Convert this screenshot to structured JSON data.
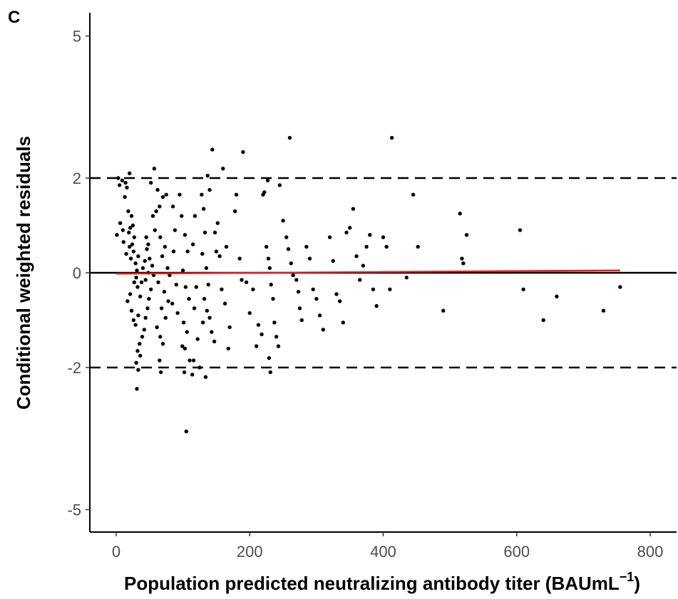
{
  "panel_label": "C",
  "chart_data": {
    "type": "scatter",
    "xlabel": "Population predicted neutralizing antibody titer (BAUmL",
    "xlabel_superscript": "−1",
    "xlabel_suffix": ")",
    "ylabel": "Conditional weighted residuals",
    "xlim": [
      -50,
      840
    ],
    "ylim": [
      -5.5,
      5.5
    ],
    "x_ticks": [
      0,
      200,
      400,
      600,
      800
    ],
    "x_tick_labels": [
      "0",
      "200",
      "400",
      "600",
      "800"
    ],
    "y_ticks": [
      -5,
      -2,
      0,
      2,
      5
    ],
    "y_tick_labels": [
      "-5",
      "-2",
      "0",
      "2",
      "5"
    ],
    "grid": false,
    "reference_lines": [
      {
        "y": 0,
        "style": "solid",
        "color": "#000000"
      },
      {
        "y": 2,
        "style": "dashed",
        "color": "#000000"
      },
      {
        "y": -2,
        "style": "dashed",
        "color": "#000000"
      }
    ],
    "trend_line": {
      "color": "#e41a1c",
      "x": [
        0,
        755
      ],
      "y": [
        -0.02,
        0.05
      ]
    },
    "point_color": "#000000",
    "points": [
      [
        3,
        2.0
      ],
      [
        5,
        1.85
      ],
      [
        9,
        1.95
      ],
      [
        14,
        1.9
      ],
      [
        16,
        1.8
      ],
      [
        13,
        1.6
      ],
      [
        1,
        0.8
      ],
      [
        6,
        1.05
      ],
      [
        10,
        0.9
      ],
      [
        11,
        0.65
      ],
      [
        19,
        0.85
      ],
      [
        21,
        0.95
      ],
      [
        25,
        1.0
      ],
      [
        23,
        1.2
      ],
      [
        18,
        1.3
      ],
      [
        27,
        0.75
      ],
      [
        15,
        0.4
      ],
      [
        20,
        0.55
      ],
      [
        22,
        0.3
      ],
      [
        24,
        0.6
      ],
      [
        26,
        0.45
      ],
      [
        29,
        0.2
      ],
      [
        31,
        0.05
      ],
      [
        33,
        0.35
      ],
      [
        30,
        -0.1
      ],
      [
        32,
        -0.3
      ],
      [
        27,
        -0.2
      ],
      [
        21,
        -0.45
      ],
      [
        17,
        -0.6
      ],
      [
        23,
        -0.8
      ],
      [
        26,
        -1.0
      ],
      [
        29,
        -1.1
      ],
      [
        33,
        -0.9
      ],
      [
        36,
        -0.5
      ],
      [
        38,
        -0.2
      ],
      [
        40,
        0.1
      ],
      [
        43,
        0.25
      ],
      [
        46,
        0.5
      ],
      [
        45,
        0.75
      ],
      [
        48,
        0.6
      ],
      [
        50,
        0.3
      ],
      [
        54,
        0.15
      ],
      [
        56,
        -0.05
      ],
      [
        52,
        -0.35
      ],
      [
        49,
        -0.55
      ],
      [
        47,
        -0.75
      ],
      [
        44,
        -0.95
      ],
      [
        42,
        -1.2
      ],
      [
        39,
        -1.35
      ],
      [
        35,
        -1.5
      ],
      [
        32,
        -1.65
      ],
      [
        36,
        -1.75
      ],
      [
        30,
        -1.9
      ],
      [
        33,
        -2.05
      ],
      [
        31,
        -2.45
      ],
      [
        20,
        2.1
      ],
      [
        60,
        1.3
      ],
      [
        55,
        1.2
      ],
      [
        65,
        1.4
      ],
      [
        75,
        1.65
      ],
      [
        62,
        1.75
      ],
      [
        70,
        1.6
      ],
      [
        58,
        0.9
      ],
      [
        66,
        0.75
      ],
      [
        73,
        0.55
      ],
      [
        69,
        0.35
      ],
      [
        77,
        0.1
      ],
      [
        80,
        -0.05
      ],
      [
        63,
        -0.2
      ],
      [
        72,
        -0.4
      ],
      [
        78,
        -0.6
      ],
      [
        68,
        -0.75
      ],
      [
        74,
        -0.95
      ],
      [
        61,
        -1.15
      ],
      [
        66,
        -1.35
      ],
      [
        70,
        -1.5
      ],
      [
        65,
        -1.85
      ],
      [
        67,
        -2.1
      ],
      [
        57,
        2.2
      ],
      [
        52,
        1.9
      ],
      [
        48,
        0.0
      ],
      [
        44,
        -0.15
      ],
      [
        85,
        1.4
      ],
      [
        88,
        0.9
      ],
      [
        86,
        0.45
      ],
      [
        90,
        -0.25
      ],
      [
        84,
        -0.65
      ],
      [
        92,
        -0.85
      ],
      [
        95,
        1.65
      ],
      [
        98,
        1.2
      ],
      [
        103,
        0.8
      ],
      [
        107,
        0.45
      ],
      [
        100,
        0.05
      ],
      [
        104,
        -0.3
      ],
      [
        109,
        -0.55
      ],
      [
        101,
        -1.05
      ],
      [
        106,
        -1.25
      ],
      [
        99,
        -1.55
      ],
      [
        103,
        -1.6
      ],
      [
        110,
        -1.85
      ],
      [
        102,
        -2.1
      ],
      [
        105,
        -3.35
      ],
      [
        115,
        0.6
      ],
      [
        118,
        1.2
      ],
      [
        120,
        -0.3
      ],
      [
        117,
        -0.75
      ],
      [
        122,
        -1.4
      ],
      [
        116,
        -1.85
      ],
      [
        114,
        -2.15
      ],
      [
        125,
        -2.0
      ],
      [
        128,
        1.65
      ],
      [
        131,
        1.35
      ],
      [
        133,
        0.85
      ],
      [
        129,
        0.4
      ],
      [
        135,
        0.1
      ],
      [
        138,
        -0.25
      ],
      [
        132,
        -0.55
      ],
      [
        136,
        -0.8
      ],
      [
        130,
        -1.05
      ],
      [
        140,
        -0.95
      ],
      [
        143,
        -1.25
      ],
      [
        147,
        -1.45
      ],
      [
        134,
        -2.2
      ],
      [
        137,
        2.05
      ],
      [
        140,
        1.75
      ],
      [
        144,
        2.6
      ],
      [
        152,
        1.05
      ],
      [
        148,
        0.85
      ],
      [
        150,
        0.45
      ],
      [
        155,
        0.35
      ],
      [
        158,
        -0.35
      ],
      [
        160,
        2.2
      ],
      [
        165,
        0.55
      ],
      [
        163,
        -0.65
      ],
      [
        170,
        -1.15
      ],
      [
        168,
        -1.6
      ],
      [
        178,
        1.3
      ],
      [
        180,
        1.65
      ],
      [
        185,
        0.3
      ],
      [
        188,
        -0.15
      ],
      [
        190,
        2.55
      ],
      [
        195,
        -0.2
      ],
      [
        200,
        -0.85
      ],
      [
        205,
        -0.35
      ],
      [
        210,
        -1.55
      ],
      [
        213,
        -1.1
      ],
      [
        218,
        -1.3
      ],
      [
        220,
        1.65
      ],
      [
        222,
        1.7
      ],
      [
        225,
        0.55
      ],
      [
        228,
        0.3
      ],
      [
        230,
        0.1
      ],
      [
        232,
        -0.25
      ],
      [
        235,
        -0.55
      ],
      [
        237,
        -1.05
      ],
      [
        240,
        -1.35
      ],
      [
        243,
        -1.55
      ],
      [
        227,
        1.95
      ],
      [
        229,
        -1.8
      ],
      [
        231,
        -2.1
      ],
      [
        245,
        1.85
      ],
      [
        250,
        1.1
      ],
      [
        255,
        0.75
      ],
      [
        258,
        0.5
      ],
      [
        262,
        0.2
      ],
      [
        265,
        -0.05
      ],
      [
        270,
        -0.15
      ],
      [
        273,
        -0.4
      ],
      [
        275,
        -0.75
      ],
      [
        278,
        -1.0
      ],
      [
        285,
        0.55
      ],
      [
        290,
        0.3
      ],
      [
        295,
        -0.35
      ],
      [
        300,
        -0.55
      ],
      [
        305,
        -0.9
      ],
      [
        310,
        -1.2
      ],
      [
        260,
        2.85
      ],
      [
        320,
        0.75
      ],
      [
        325,
        0.25
      ],
      [
        330,
        -0.45
      ],
      [
        335,
        -0.6
      ],
      [
        340,
        -1.05
      ],
      [
        345,
        0.85
      ],
      [
        350,
        0.95
      ],
      [
        355,
        1.35
      ],
      [
        360,
        0.35
      ],
      [
        365,
        -0.15
      ],
      [
        370,
        0.15
      ],
      [
        375,
        0.55
      ],
      [
        380,
        0.8
      ],
      [
        385,
        -0.35
      ],
      [
        390,
        -0.7
      ],
      [
        400,
        0.75
      ],
      [
        405,
        0.55
      ],
      [
        410,
        -0.35
      ],
      [
        413,
        2.85
      ],
      [
        435,
        -0.1
      ],
      [
        445,
        1.65
      ],
      [
        452,
        0.55
      ],
      [
        490,
        -0.8
      ],
      [
        515,
        1.25
      ],
      [
        518,
        0.3
      ],
      [
        520,
        0.2
      ],
      [
        525,
        0.8
      ],
      [
        605,
        0.9
      ],
      [
        610,
        -0.35
      ],
      [
        640,
        -1.0
      ],
      [
        660,
        -0.5
      ],
      [
        730,
        -0.8
      ],
      [
        755,
        -0.3
      ]
    ]
  }
}
